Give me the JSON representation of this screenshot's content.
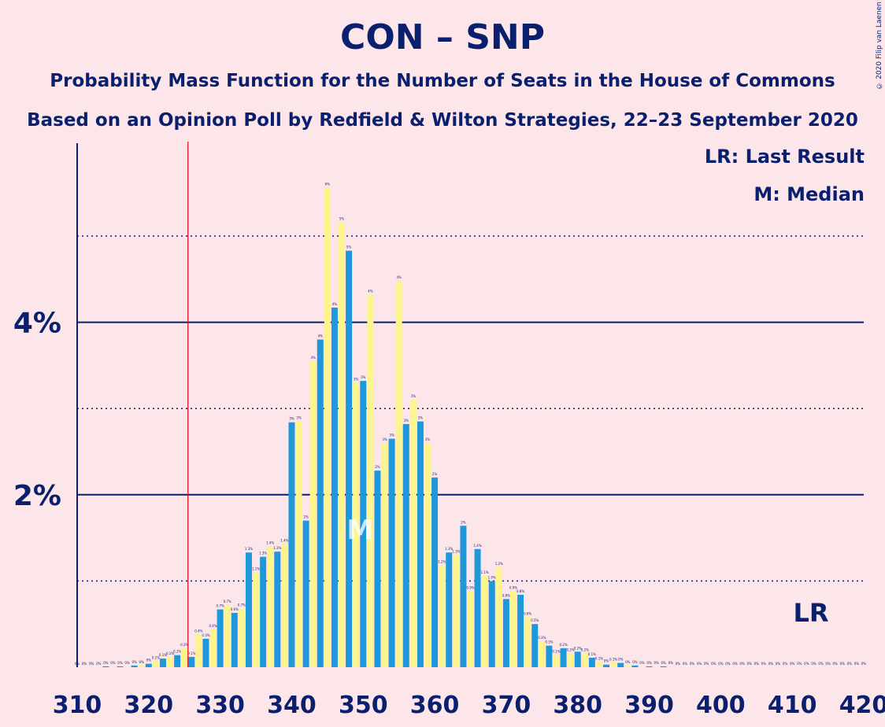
{
  "title": "CON – SNP",
  "subtitle_1": "Probability Mass Function for the Number of Seats in the House of Commons",
  "subtitle_2": "Based on an Opinion Poll by Redfield & Wilton Strategies, 22–23 September 2020",
  "copyright": "© 2020 Filip van Laenen",
  "legend": {
    "lr": "LR: Last Result",
    "m": "M: Median"
  },
  "markers": {
    "lr_label": "LR",
    "median_label": "M"
  },
  "colors": {
    "background": "#FDE6EA",
    "text": "#0A1F6E",
    "bar_primary": "#1E98DB",
    "bar_secondary": "#FDF58C",
    "last_result_line": "#E0001B"
  },
  "chart_data": {
    "type": "bar",
    "xlabel": "",
    "ylabel": "",
    "x_ticks": [
      310,
      320,
      330,
      340,
      350,
      360,
      370,
      380,
      390,
      400,
      410,
      420
    ],
    "y_ticks": [
      "2%",
      "4%"
    ],
    "ylim": [
      0,
      6
    ],
    "median": 350,
    "last_result": 326,
    "median_marker_text": "M",
    "last_result_marker_text": "LR",
    "seats": [
      310,
      311,
      312,
      313,
      314,
      315,
      316,
      317,
      318,
      319,
      320,
      321,
      322,
      323,
      324,
      325,
      326,
      327,
      328,
      329,
      330,
      331,
      332,
      333,
      334,
      335,
      336,
      337,
      338,
      339,
      340,
      341,
      342,
      343,
      344,
      345,
      346,
      347,
      348,
      349,
      350,
      351,
      352,
      353,
      354,
      355,
      356,
      357,
      358,
      359,
      360,
      361,
      362,
      363,
      364,
      365,
      366,
      367,
      368,
      369,
      370,
      371,
      372,
      373,
      374,
      375,
      376,
      377,
      378,
      379,
      380,
      381,
      382,
      383,
      384,
      385,
      386,
      387,
      388,
      389,
      390,
      391,
      392,
      393,
      394,
      395,
      396,
      397,
      398,
      399,
      400,
      401,
      402,
      403,
      404,
      405,
      406,
      407,
      408,
      409,
      410,
      411,
      412,
      413,
      414,
      415,
      416,
      417,
      418,
      419,
      420
    ],
    "values": [
      0,
      0,
      0,
      0,
      0.01,
      0.01,
      0.01,
      0.01,
      0.02,
      0.02,
      0.04,
      0.07,
      0.1,
      0.12,
      0.14,
      0.22,
      0.12,
      0.38,
      0.33,
      0.44,
      0.67,
      0.72,
      0.63,
      0.68,
      1.33,
      1.1,
      1.28,
      1.4,
      1.34,
      1.43,
      2.84,
      2.85,
      1.7,
      3.55,
      3.8,
      5.56,
      4.17,
      5.16,
      4.83,
      3.3,
      3.32,
      4.32,
      2.28,
      2.6,
      2.65,
      4.48,
      2.82,
      3.1,
      2.85,
      2.6,
      2.2,
      1.18,
      1.33,
      1.3,
      1.64,
      0.88,
      1.37,
      1.06,
      1.0,
      1.16,
      0.79,
      0.88,
      0.84,
      0.58,
      0.5,
      0.3,
      0.25,
      0.14,
      0.22,
      0.16,
      0.18,
      0.16,
      0.11,
      0.06,
      0.03,
      0.05,
      0.05,
      0.02,
      0.02,
      0.01,
      0.01,
      0.01,
      0.01,
      0.01,
      0,
      0,
      0,
      0,
      0,
      0,
      0,
      0,
      0,
      0,
      0,
      0,
      0,
      0,
      0,
      0,
      0,
      0,
      0,
      0,
      0,
      0,
      0,
      0,
      0,
      0,
      0
    ],
    "value_labels": [
      "0%",
      "0%",
      "0%",
      "0%",
      "0%",
      "0%",
      "0%",
      "0%",
      "0%",
      "0%",
      "0%",
      "0.1%",
      "0.1%",
      "0.1%",
      "0.1%",
      "0.2%",
      "0.1%",
      "0.4%",
      "0.3%",
      "0.4%",
      "0.7%",
      "0.7%",
      "0.6%",
      "0.7%",
      "1.3%",
      "1.1%",
      "1.3%",
      "1.4%",
      "1.3%",
      "1.4%",
      "3%",
      "3%",
      "2%",
      "4%",
      "4%",
      "6%",
      "4%",
      "5%",
      "5%",
      "3%",
      "3%",
      "4%",
      "2%",
      "3%",
      "3%",
      "4%",
      "3%",
      "3%",
      "3%",
      "3%",
      "2%",
      "1.2%",
      "1.3%",
      "1.3%",
      "2%",
      "0.9%",
      "1.4%",
      "1.1%",
      "1.0%",
      "1.2%",
      "0.8%",
      "0.9%",
      "0.8%",
      "0.6%",
      "0.5%",
      "0.3%",
      "0.3%",
      "0.1%",
      "0.2%",
      "0.2%",
      "0.2%",
      "0.2%",
      "0.1%",
      "0.1%",
      "0%",
      "0.1%",
      "0%",
      "0%",
      "0%",
      "0%",
      "0%",
      "0%",
      "0%",
      "0%",
      "0%",
      "0%",
      "0%",
      "0%",
      "0%",
      "0%",
      "0%",
      "0%",
      "0%",
      "0%",
      "0%",
      "0%",
      "0%",
      "0%",
      "0%",
      "0%",
      "0%",
      "0%",
      "0%",
      "0%",
      "0%",
      "0%",
      "0%",
      "0%",
      "0%",
      "0%",
      "0%"
    ]
  }
}
